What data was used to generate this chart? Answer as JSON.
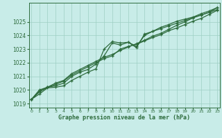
{
  "title": "Graphe pression niveau de la mer (hPa)",
  "bg_color": "#c8ece8",
  "grid_color": "#9ecfc4",
  "line_color": "#2d6b3c",
  "x_ticks": [
    0,
    1,
    2,
    3,
    4,
    5,
    6,
    7,
    8,
    9,
    10,
    11,
    12,
    13,
    14,
    15,
    16,
    17,
    18,
    19,
    20,
    21,
    22,
    23
  ],
  "y_ticks": [
    1019,
    1020,
    1021,
    1022,
    1023,
    1024,
    1025
  ],
  "ylim": [
    1018.7,
    1026.4
  ],
  "xlim": [
    -0.3,
    23.3
  ],
  "series": [
    [
      1019.3,
      1019.7,
      1020.15,
      1020.2,
      1020.3,
      1020.7,
      1021.0,
      1021.3,
      1021.55,
      1023.0,
      1023.55,
      1023.45,
      1023.5,
      1023.1,
      1024.1,
      1024.3,
      1024.6,
      1024.8,
      1025.05,
      1025.2,
      1025.35,
      1025.6,
      1025.8,
      1026.05
    ],
    [
      1019.3,
      1019.85,
      1020.2,
      1020.3,
      1020.5,
      1021.0,
      1021.3,
      1021.5,
      1021.9,
      1022.5,
      1023.45,
      1023.3,
      1023.5,
      1023.2,
      1024.0,
      1024.3,
      1024.5,
      1024.7,
      1024.9,
      1025.1,
      1025.3,
      1025.5,
      1025.7,
      1025.9
    ],
    [
      1019.3,
      1019.9,
      1020.2,
      1020.4,
      1020.65,
      1021.1,
      1021.4,
      1021.7,
      1022.0,
      1022.3,
      1022.5,
      1023.0,
      1023.2,
      1023.35,
      1023.6,
      1023.85,
      1024.05,
      1024.35,
      1024.55,
      1024.8,
      1025.05,
      1025.25,
      1025.55,
      1025.85
    ],
    [
      1019.3,
      1020.0,
      1020.2,
      1020.5,
      1020.7,
      1021.2,
      1021.5,
      1021.8,
      1022.1,
      1022.4,
      1022.6,
      1022.9,
      1023.15,
      1023.4,
      1023.65,
      1023.95,
      1024.15,
      1024.45,
      1024.75,
      1025.0,
      1025.3,
      1025.5,
      1025.7,
      1026.05
    ]
  ]
}
